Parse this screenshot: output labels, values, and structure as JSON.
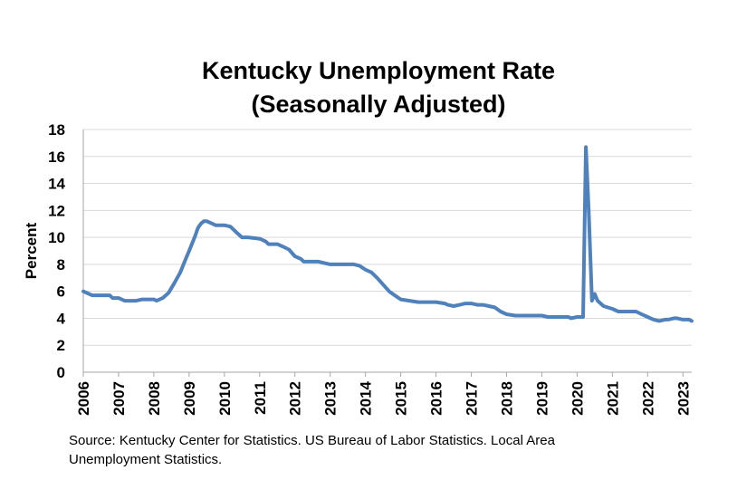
{
  "chart_data": {
    "type": "line",
    "title_line1": "Kentucky Unemployment Rate",
    "title_line2": "(Seasonally Adjusted)",
    "xlabel": "",
    "ylabel": "Percent",
    "ylim": [
      0,
      18
    ],
    "yticks": [
      "0",
      "2",
      "4",
      "6",
      "8",
      "10",
      "12",
      "14",
      "16",
      "18"
    ],
    "xlim": [
      2006,
      2023.25
    ],
    "xticks": [
      "2006",
      "2007",
      "2008",
      "2009",
      "2010",
      "2011",
      "2012",
      "2013",
      "2014",
      "2015",
      "2016",
      "2017",
      "2018",
      "2019",
      "2020",
      "2021",
      "2022",
      "2023"
    ],
    "grid": true,
    "line_color": "#4F81BD",
    "series": [
      {
        "name": "",
        "x": [
          2006.0,
          2006.25,
          2006.5,
          2006.75,
          2006.83,
          2007.0,
          2007.17,
          2007.25,
          2007.5,
          2007.67,
          2007.75,
          2008.0,
          2008.08,
          2008.25,
          2008.42,
          2008.58,
          2008.75,
          2008.92,
          2009.0,
          2009.17,
          2009.25,
          2009.33,
          2009.42,
          2009.5,
          2009.58,
          2009.67,
          2009.75,
          2009.83,
          2010.0,
          2010.17,
          2010.25,
          2010.33,
          2010.5,
          2010.67,
          2011.0,
          2011.17,
          2011.25,
          2011.33,
          2011.5,
          2011.67,
          2011.83,
          2012.0,
          2012.17,
          2012.25,
          2012.42,
          2012.67,
          2012.83,
          2013.0,
          2013.25,
          2013.5,
          2013.67,
          2013.83,
          2014.0,
          2014.17,
          2014.33,
          2014.5,
          2014.67,
          2014.83,
          2015.0,
          2015.25,
          2015.5,
          2015.75,
          2016.0,
          2016.25,
          2016.33,
          2016.5,
          2016.67,
          2016.83,
          2017.0,
          2017.17,
          2017.33,
          2017.5,
          2017.67,
          2017.83,
          2018.0,
          2018.25,
          2018.5,
          2018.75,
          2019.0,
          2019.17,
          2019.25,
          2019.5,
          2019.75,
          2019.83,
          2020.0,
          2020.17,
          2020.25,
          2020.33,
          2020.42,
          2020.5,
          2020.58,
          2020.75,
          2021.0,
          2021.17,
          2021.5,
          2021.67,
          2021.83,
          2022.0,
          2022.17,
          2022.33,
          2022.5,
          2022.58,
          2022.75,
          2022.83,
          2023.0,
          2023.17,
          2023.25
        ],
        "values": [
          6.0,
          5.7,
          5.7,
          5.7,
          5.5,
          5.5,
          5.3,
          5.3,
          5.3,
          5.4,
          5.4,
          5.4,
          5.3,
          5.5,
          5.9,
          6.6,
          7.4,
          8.5,
          9.0,
          10.1,
          10.7,
          11.0,
          11.2,
          11.2,
          11.1,
          11.0,
          10.9,
          10.9,
          10.9,
          10.8,
          10.6,
          10.4,
          10.0,
          10.0,
          9.9,
          9.7,
          9.5,
          9.5,
          9.5,
          9.3,
          9.1,
          8.6,
          8.4,
          8.2,
          8.2,
          8.2,
          8.1,
          8.0,
          8.0,
          8.0,
          8.0,
          7.9,
          7.6,
          7.4,
          7.0,
          6.5,
          6.0,
          5.7,
          5.4,
          5.3,
          5.2,
          5.2,
          5.2,
          5.1,
          5.0,
          4.9,
          5.0,
          5.1,
          5.1,
          5.0,
          5.0,
          4.9,
          4.8,
          4.5,
          4.3,
          4.2,
          4.2,
          4.2,
          4.2,
          4.1,
          4.1,
          4.1,
          4.1,
          4.0,
          4.1,
          4.1,
          16.7,
          12.0,
          5.3,
          5.8,
          5.3,
          4.9,
          4.7,
          4.5,
          4.5,
          4.5,
          4.3,
          4.1,
          3.9,
          3.8,
          3.9,
          3.9,
          4.0,
          4.0,
          3.9,
          3.9,
          3.8
        ]
      }
    ],
    "source_line1": "Source: Kentucky Center for Statistics. US Bureau of Labor Statistics. Local Area",
    "source_line2": "Unemployment Statistics."
  }
}
